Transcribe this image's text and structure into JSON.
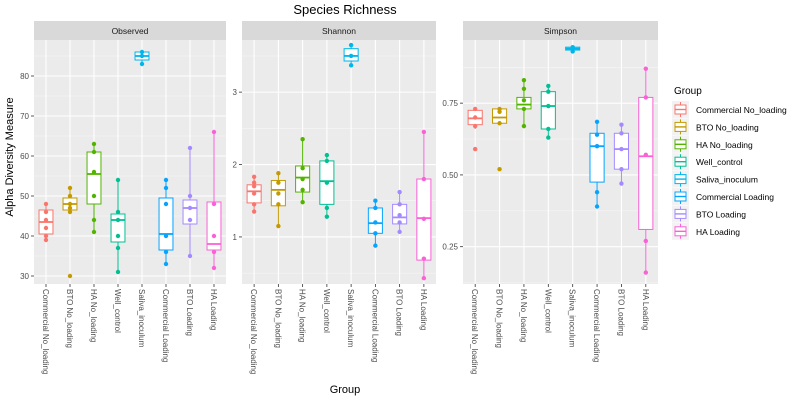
{
  "chart_data": {
    "type": "boxplot",
    "title": "Species Richness",
    "xlabel": "Group",
    "ylabel": "Alpha Diversity Measure",
    "legend_title": "Group",
    "legend_position": "right",
    "grid": true,
    "groups": [
      {
        "name": "Commercial No_loading",
        "color": "#F8766D"
      },
      {
        "name": "BTO No_loading",
        "color": "#C49A00"
      },
      {
        "name": "HA No_loading",
        "color": "#53B400"
      },
      {
        "name": "Well_control",
        "color": "#00C094"
      },
      {
        "name": "Saliva_inoculum",
        "color": "#00B6EB"
      },
      {
        "name": "Commercial Loading",
        "color": "#06A4FF"
      },
      {
        "name": "BTO Loading",
        "color": "#A58AFF"
      },
      {
        "name": "HA Loading",
        "color": "#FB61D7"
      }
    ],
    "panels": [
      {
        "name": "Observed",
        "ylim": [
          28,
          89
        ],
        "yticks": [
          30,
          40,
          50,
          60,
          70,
          80
        ],
        "boxes": [
          {
            "q1": 40.5,
            "median": 43.5,
            "q3": 46.5,
            "lower": 39,
            "upper": 48,
            "points": [
              39,
              40,
              42,
              44,
              46,
              48
            ]
          },
          {
            "q1": 46.5,
            "median": 48,
            "q3": 49.5,
            "lower": 45.5,
            "upper": 52,
            "points": [
              30,
              46,
              47,
              48,
              50,
              52
            ]
          },
          {
            "q1": 48,
            "median": 55.5,
            "q3": 61,
            "lower": 41,
            "upper": 63,
            "points": [
              41,
              44,
              50,
              56,
              61,
              63
            ]
          },
          {
            "q1": 38.5,
            "median": 44,
            "q3": 45.5,
            "lower": 31,
            "upper": 54,
            "points": [
              31,
              37,
              40,
              44,
              46,
              54
            ]
          },
          {
            "q1": 84,
            "median": 85,
            "q3": 86,
            "lower": 83,
            "upper": 86.5,
            "points": [
              83,
              85,
              86
            ]
          },
          {
            "q1": 36.5,
            "median": 40.5,
            "q3": 49.5,
            "lower": 33,
            "upper": 54,
            "points": [
              33,
              36,
              40,
              48,
              52,
              54
            ]
          },
          {
            "q1": 43,
            "median": 47,
            "q3": 49,
            "lower": 35,
            "upper": 62,
            "points": [
              35,
              44,
              47,
              50,
              62
            ]
          },
          {
            "q1": 36.5,
            "median": 38,
            "q3": 48.5,
            "lower": 32,
            "upper": 66,
            "points": [
              32,
              36,
              40,
              48,
              66
            ]
          }
        ]
      },
      {
        "name": "Shannon",
        "ylim": [
          0.35,
          3.72
        ],
        "yticks": [
          1,
          2,
          3
        ],
        "boxes": [
          {
            "q1": 1.47,
            "median": 1.63,
            "q3": 1.72,
            "lower": 1.35,
            "upper": 1.83,
            "points": [
              1.35,
              1.45,
              1.6,
              1.7,
              1.75,
              1.83
            ]
          },
          {
            "q1": 1.43,
            "median": 1.65,
            "q3": 1.78,
            "lower": 1.15,
            "upper": 1.88,
            "points": [
              1.15,
              1.45,
              1.6,
              1.75,
              1.88
            ]
          },
          {
            "q1": 1.62,
            "median": 1.82,
            "q3": 1.98,
            "lower": 1.48,
            "upper": 2.35,
            "points": [
              1.48,
              1.65,
              1.8,
              1.95,
              2.35
            ]
          },
          {
            "q1": 1.45,
            "median": 1.77,
            "q3": 2.05,
            "lower": 1.28,
            "upper": 2.13,
            "points": [
              1.28,
              1.4,
              1.75,
              2.05,
              2.13
            ]
          },
          {
            "q1": 3.43,
            "median": 3.5,
            "q3": 3.6,
            "lower": 3.37,
            "upper": 3.65,
            "points": [
              3.37,
              3.5,
              3.65
            ]
          },
          {
            "q1": 1.05,
            "median": 1.19,
            "q3": 1.4,
            "lower": 0.88,
            "upper": 1.5,
            "points": [
              0.88,
              1.05,
              1.2,
              1.4,
              1.5
            ]
          },
          {
            "q1": 1.18,
            "median": 1.27,
            "q3": 1.45,
            "lower": 1.07,
            "upper": 1.62,
            "points": [
              1.07,
              1.2,
              1.3,
              1.45,
              1.62
            ]
          },
          {
            "q1": 0.68,
            "median": 1.26,
            "q3": 1.8,
            "lower": 0.43,
            "upper": 2.45,
            "points": [
              0.43,
              0.7,
              1.25,
              1.8,
              2.45
            ]
          }
        ]
      },
      {
        "name": "Simpson",
        "ylim": [
          0.12,
          0.97
        ],
        "yticks": [
          0.25,
          0.5,
          0.75
        ],
        "boxes": [
          {
            "q1": 0.675,
            "median": 0.697,
            "q3": 0.725,
            "lower": 0.66,
            "upper": 0.735,
            "points": [
              0.59,
              0.67,
              0.7,
              0.73
            ]
          },
          {
            "q1": 0.68,
            "median": 0.7,
            "q3": 0.73,
            "lower": 0.675,
            "upper": 0.735,
            "points": [
              0.52,
              0.68,
              0.72,
              0.73
            ]
          },
          {
            "q1": 0.73,
            "median": 0.745,
            "q3": 0.77,
            "lower": 0.67,
            "upper": 0.83,
            "points": [
              0.67,
              0.73,
              0.76,
              0.8,
              0.83
            ]
          },
          {
            "q1": 0.66,
            "median": 0.74,
            "q3": 0.79,
            "lower": 0.63,
            "upper": 0.81,
            "points": [
              0.63,
              0.66,
              0.74,
              0.79,
              0.81
            ]
          },
          {
            "q1": 0.935,
            "median": 0.94,
            "q3": 0.945,
            "lower": 0.93,
            "upper": 0.95,
            "points": [
              0.93,
              0.94,
              0.945
            ]
          },
          {
            "q1": 0.475,
            "median": 0.6,
            "q3": 0.645,
            "lower": 0.39,
            "upper": 0.685,
            "points": [
              0.39,
              0.44,
              0.6,
              0.64,
              0.685
            ]
          },
          {
            "q1": 0.52,
            "median": 0.59,
            "q3": 0.645,
            "lower": 0.47,
            "upper": 0.675,
            "points": [
              0.47,
              0.52,
              0.59,
              0.645,
              0.675
            ]
          },
          {
            "q1": 0.31,
            "median": 0.565,
            "q3": 0.77,
            "lower": 0.16,
            "upper": 0.87,
            "points": [
              0.16,
              0.27,
              0.57,
              0.77,
              0.87
            ]
          }
        ]
      }
    ]
  }
}
